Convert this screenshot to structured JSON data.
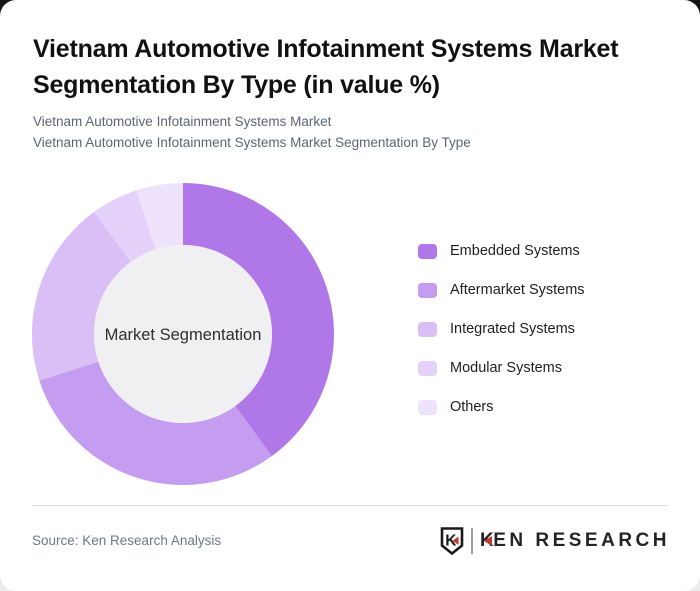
{
  "header": {
    "title": "Vietnam Automotive Infotainment Systems Market Segmentation By Type (in value %)",
    "subtitle_line1": "Vietnam Automotive Infotainment Systems Market",
    "subtitle_line2": "Vietnam Automotive Infotainment Systems Market Segmentation By Type"
  },
  "chart_data": {
    "type": "pie",
    "variant": "donut",
    "title": "Vietnam Automotive Infotainment Systems Market Segmentation By Type (in value %)",
    "center_label": "Market Segmentation",
    "categories": [
      "Embedded Systems",
      "Aftermarket Systems",
      "Integrated Systems",
      "Modular Systems",
      "Others"
    ],
    "values": [
      40,
      30,
      20,
      5,
      5
    ],
    "unit": "value %",
    "colors": [
      "#b077e8",
      "#c59df0",
      "#d9bff6",
      "#e4d1f9",
      "#eee2fc"
    ],
    "center_fill": "#f0eff1",
    "start_angle_deg": 0,
    "direction": "clockwise",
    "inner_radius_ratio": 0.59,
    "legend_position": "right"
  },
  "footer": {
    "source": "Source: Ken Research Analysis",
    "logo_badge_letter": "K",
    "logo_text_k": "K",
    "logo_text_rest": "EN RESEARCH",
    "logo_red": "#c0392f"
  }
}
